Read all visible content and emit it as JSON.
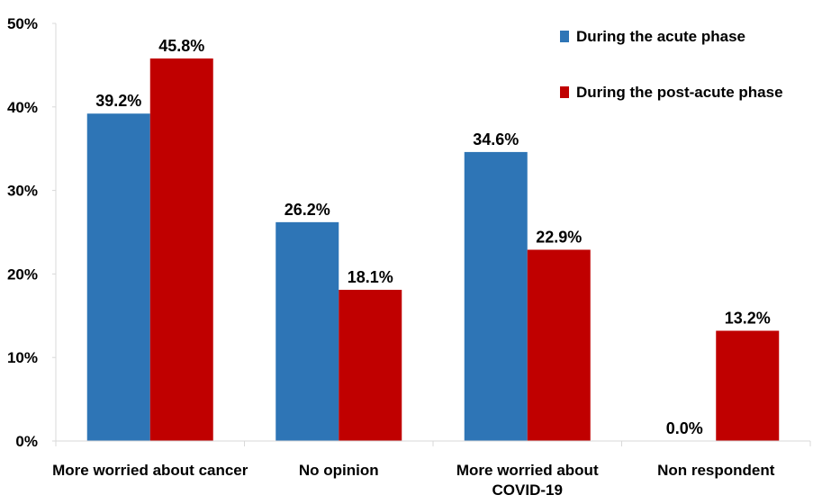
{
  "chart_data": {
    "type": "bar",
    "categories": [
      [
        "More worried about cancer"
      ],
      [
        "No opinion"
      ],
      [
        "More worried about",
        "COVID-19"
      ],
      [
        "Non respondent"
      ]
    ],
    "series": [
      {
        "name": "During the acute phase",
        "color": "#2E75B6",
        "values": [
          39.2,
          26.2,
          34.6,
          0.0
        ],
        "labels": [
          "39.2%",
          "26.2%",
          "34.6%",
          "0.0%"
        ]
      },
      {
        "name": "During the post-acute phase",
        "color": "#C00000",
        "values": [
          45.8,
          18.1,
          22.9,
          13.2
        ],
        "labels": [
          "45.8%",
          "18.1%",
          "22.9%",
          "13.2%"
        ]
      }
    ],
    "ylim": [
      0,
      50
    ],
    "yticks": [
      0,
      10,
      20,
      30,
      40,
      50
    ],
    "ytick_labels": [
      "0%",
      "10%",
      "20%",
      "30%",
      "40%",
      "50%"
    ],
    "title": "",
    "xlabel": "",
    "ylabel": "",
    "grid": false,
    "legend_position": "top-right"
  }
}
